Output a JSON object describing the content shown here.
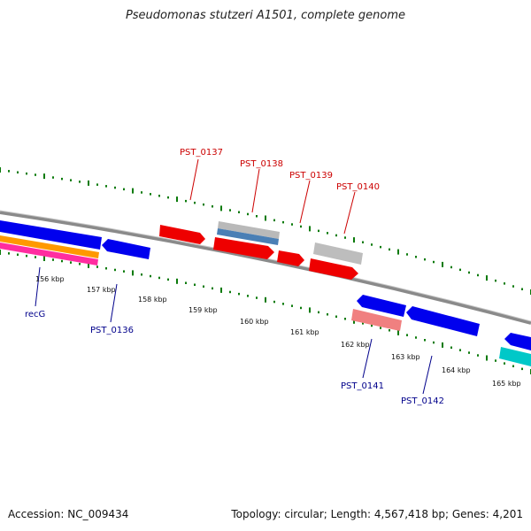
{
  "title": "Pseudomonas stutzeri A1501, complete genome",
  "footer": {
    "accession": "Accession: NC_009434",
    "info": "Topology: circular; Length: 4,567,418 bp; Genes: 4,201"
  },
  "scale_labels": [
    "156 kbp",
    "157 kbp",
    "158 kbp",
    "159 kbp",
    "160 kbp",
    "161 kbp",
    "162 kbp",
    "163 kbp",
    "164 kbp",
    "165 kbp"
  ],
  "gene_labels": {
    "PST_0137": "PST_0137",
    "PST_0138": "PST_0138",
    "PST_0139": "PST_0139",
    "PST_0140": "PST_0140",
    "recG": "recG",
    "PST_0136": "PST_0136",
    "PST_0141": "PST_0141",
    "PST_0142": "PST_0142"
  },
  "colors": {
    "forward_label": "#cc0000",
    "reverse_label": "#00008b",
    "cds_red": "#ee0000",
    "cds_blue": "#0000ee",
    "backbone": "#888888",
    "tick_green": "#0a7a0a"
  }
}
